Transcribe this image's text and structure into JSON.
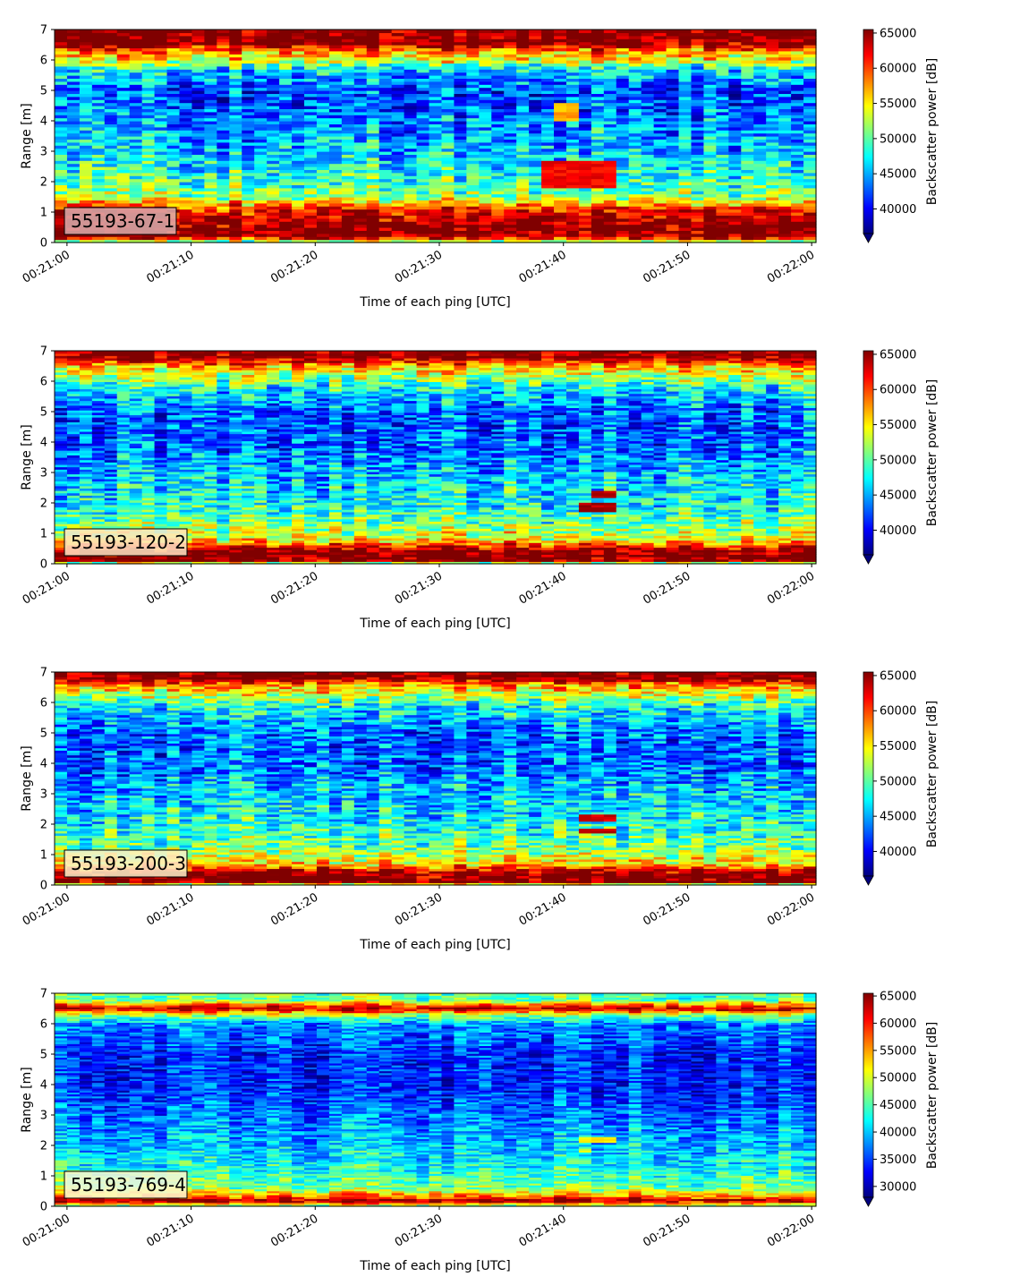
{
  "chart_data": [
    {
      "type": "heatmap",
      "panel_label": "55193-67-1",
      "label_box_color": "#dcaeae",
      "xlabel": "Time of each ping [UTC]",
      "ylabel": "Range [m]",
      "x_ticks": [
        "00:21:00",
        "00:21:10",
        "00:21:20",
        "00:21:30",
        "00:21:40",
        "00:21:50",
        "00:22:00"
      ],
      "xlim": [
        "00:21:00",
        "00:22:00"
      ],
      "y_ticks": [
        0,
        1,
        2,
        3,
        4,
        5,
        6,
        7
      ],
      "ylim": [
        0,
        7
      ],
      "colormap": "jet",
      "colorbar_label": "Backscatter power [dB]",
      "colorbar_ticks": [
        40000,
        45000,
        50000,
        55000,
        60000,
        65000
      ],
      "clim": [
        36500,
        65500
      ],
      "colorbar_extend": "min",
      "n_pings": 61,
      "n_range_bins": 70,
      "profile": {
        "range_m": [
          0.0,
          0.2,
          0.5,
          1.1,
          1.5,
          2.0,
          3.0,
          4.0,
          5.0,
          5.7,
          6.0,
          6.3,
          6.55,
          7.0
        ],
        "power": [
          48000,
          66000,
          66000,
          62000,
          52000,
          49000,
          46000,
          44000,
          42000,
          47000,
          54000,
          58000,
          66000,
          66000
        ]
      },
      "features": [
        {
          "time_start": "00:21:38",
          "time_end": "00:21:44",
          "range_min_m": 1.8,
          "range_max_m": 2.7,
          "power": 62000
        },
        {
          "time_start": "00:21:39",
          "time_end": "00:21:41",
          "range_min_m": 4.0,
          "range_max_m": 4.6,
          "power": 57000
        }
      ]
    },
    {
      "type": "heatmap",
      "panel_label": "55193-120-2",
      "label_box_color": "#fde6c6",
      "xlabel": "Time of each ping [UTC]",
      "ylabel": "Range [m]",
      "x_ticks": [
        "00:21:00",
        "00:21:10",
        "00:21:20",
        "00:21:30",
        "00:21:40",
        "00:21:50",
        "00:22:00"
      ],
      "xlim": [
        "00:21:00",
        "00:22:00"
      ],
      "y_ticks": [
        0,
        1,
        2,
        3,
        4,
        5,
        6,
        7
      ],
      "ylim": [
        0,
        7
      ],
      "colormap": "jet",
      "colorbar_label": "Backscatter power [dB]",
      "colorbar_ticks": [
        40000,
        45000,
        50000,
        55000,
        60000,
        65000
      ],
      "clim": [
        36500,
        65500
      ],
      "colorbar_extend": "min",
      "n_pings": 61,
      "n_range_bins": 90,
      "profile": {
        "range_m": [
          0.0,
          0.1,
          0.45,
          0.8,
          1.3,
          2.0,
          3.0,
          4.0,
          5.0,
          5.8,
          6.2,
          6.5,
          6.8,
          7.0
        ],
        "power": [
          45000,
          66000,
          66000,
          55000,
          51000,
          48000,
          46000,
          43000,
          43000,
          48000,
          53000,
          57000,
          66000,
          66000
        ]
      },
      "features": [
        {
          "time_start": "00:21:41",
          "time_end": "00:21:44",
          "range_min_m": 1.7,
          "range_max_m": 2.0,
          "power": 64000
        },
        {
          "time_start": "00:21:42",
          "time_end": "00:21:44",
          "range_min_m": 2.2,
          "range_max_m": 2.4,
          "power": 64000
        }
      ]
    },
    {
      "type": "heatmap",
      "panel_label": "55193-200-3",
      "label_box_color": "#fdf1c9",
      "xlabel": "Time of each ping [UTC]",
      "ylabel": "Range [m]",
      "x_ticks": [
        "00:21:00",
        "00:21:10",
        "00:21:20",
        "00:21:30",
        "00:21:40",
        "00:21:50",
        "00:22:00"
      ],
      "xlim": [
        "00:21:00",
        "00:22:00"
      ],
      "y_ticks": [
        0,
        1,
        2,
        3,
        4,
        5,
        6,
        7
      ],
      "ylim": [
        0,
        7
      ],
      "colormap": "jet",
      "colorbar_label": "Backscatter power [dB]",
      "colorbar_ticks": [
        40000,
        45000,
        50000,
        55000,
        60000,
        65000
      ],
      "clim": [
        36500,
        65500
      ],
      "colorbar_extend": "min",
      "n_pings": 61,
      "n_range_bins": 90,
      "profile": {
        "range_m": [
          0.0,
          0.1,
          0.4,
          0.7,
          1.2,
          2.0,
          3.0,
          4.0,
          5.0,
          5.9,
          6.3,
          6.6,
          6.8,
          7.0
        ],
        "power": [
          46000,
          66000,
          66000,
          56000,
          51000,
          48000,
          46000,
          43000,
          43000,
          48000,
          54000,
          58000,
          66000,
          66000
        ]
      },
      "features": [
        {
          "time_start": "00:21:41",
          "time_end": "00:21:44",
          "range_min_m": 1.7,
          "range_max_m": 1.9,
          "power": 64000
        },
        {
          "time_start": "00:21:41",
          "time_end": "00:21:44",
          "range_min_m": 2.1,
          "range_max_m": 2.3,
          "power": 63000
        }
      ]
    },
    {
      "type": "heatmap",
      "panel_label": "55193-769-4",
      "label_box_color": "#fdf7d2",
      "xlabel": "Time of each ping [UTC]",
      "ylabel": "Range [m]",
      "x_ticks": [
        "00:21:00",
        "00:21:10",
        "00:21:20",
        "00:21:30",
        "00:21:40",
        "00:21:50",
        "00:22:00"
      ],
      "xlim": [
        "00:21:00",
        "00:22:00"
      ],
      "y_ticks": [
        0,
        1,
        2,
        3,
        4,
        5,
        6,
        7
      ],
      "ylim": [
        0,
        7
      ],
      "colormap": "jet",
      "colorbar_label": "Backscatter power [dB]",
      "colorbar_ticks": [
        30000,
        35000,
        40000,
        45000,
        50000,
        55000,
        60000,
        65000
      ],
      "clim": [
        28000,
        65500
      ],
      "colorbar_extend": "min",
      "n_pings": 61,
      "n_range_bins": 110,
      "profile": {
        "range_m": [
          0.0,
          0.2,
          0.3,
          0.6,
          1.2,
          2.0,
          3.0,
          4.0,
          5.0,
          6.0,
          6.3,
          6.5,
          6.65,
          6.8,
          7.0
        ],
        "power": [
          45000,
          66000,
          58000,
          47000,
          43000,
          40000,
          37000,
          34000,
          34000,
          38000,
          48000,
          64000,
          56000,
          45000,
          47000
        ]
      },
      "features": [
        {
          "time_start": "00:21:41",
          "time_end": "00:21:44",
          "range_min_m": 2.1,
          "range_max_m": 2.3,
          "power": 52000
        },
        {
          "time_start": "00:21:41",
          "time_end": "00:21:42",
          "range_min_m": 1.8,
          "range_max_m": 1.9,
          "power": 50000
        }
      ]
    }
  ]
}
